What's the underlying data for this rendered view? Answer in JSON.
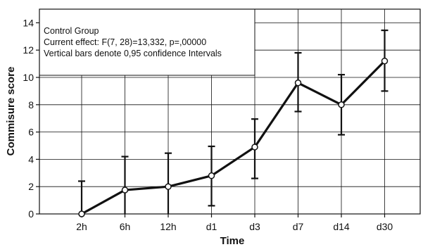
{
  "chart_data": {
    "type": "line",
    "xlabel": "Time",
    "ylabel": "Commisure score",
    "categories": [
      "2h",
      "6h",
      "12h",
      "d1",
      "d3",
      "d7",
      "d14",
      "d30"
    ],
    "series": [
      {
        "values": [
          0.0,
          1.75,
          2.0,
          2.8,
          4.9,
          9.6,
          8.0,
          11.2
        ],
        "ci_low": [
          0.0,
          0.0,
          0.0,
          0.6,
          2.6,
          7.5,
          5.8,
          9.0
        ],
        "ci_high": [
          2.4,
          4.2,
          4.45,
          4.95,
          6.95,
          11.8,
          10.2,
          13.45
        ]
      }
    ],
    "ylim": [
      0,
      15
    ],
    "yticks": [
      0,
      2,
      4,
      6,
      8,
      10,
      12,
      14
    ],
    "grid": true,
    "annotation": [
      "Control Group",
      "Current effect: F(7, 28)=13,332, p=,00000",
      "Vertical bars denote 0,95 confidence Intervals"
    ],
    "line_color": "#111111",
    "marker_fill": "#ffffff"
  }
}
